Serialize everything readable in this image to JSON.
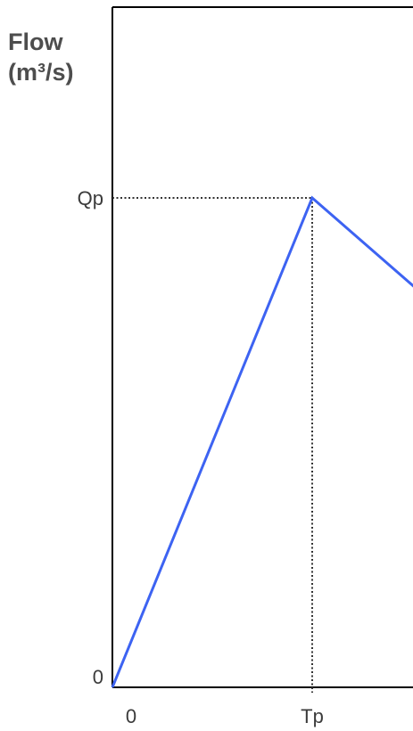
{
  "chart_data": {
    "type": "line",
    "title": "",
    "ylabel_lines": [
      "Flow",
      "(m³/s)"
    ],
    "xlabel": "",
    "x_ticks": [
      "0",
      "Tp"
    ],
    "y_ticks": [
      "0",
      "Qp"
    ],
    "series": [
      {
        "points": [
          {
            "x": 0,
            "y": 0
          },
          {
            "x": 1,
            "y": 1
          },
          {
            "x": 1.52,
            "y": 0.815
          }
        ]
      }
    ],
    "reference_lines": [
      {
        "kind": "horizontal",
        "at_y": 1,
        "from_x": 0,
        "to_x": 1,
        "style": "dotted"
      },
      {
        "kind": "vertical",
        "at_x": 1,
        "from_y": 0,
        "to_y": 1,
        "style": "dotted"
      }
    ],
    "xlim": [
      0,
      1.52
    ],
    "ylim": [
      0,
      1
    ],
    "grid": false,
    "line_color": "#3d63f2",
    "axis_color": "#000000",
    "reference_color": "#333333"
  }
}
